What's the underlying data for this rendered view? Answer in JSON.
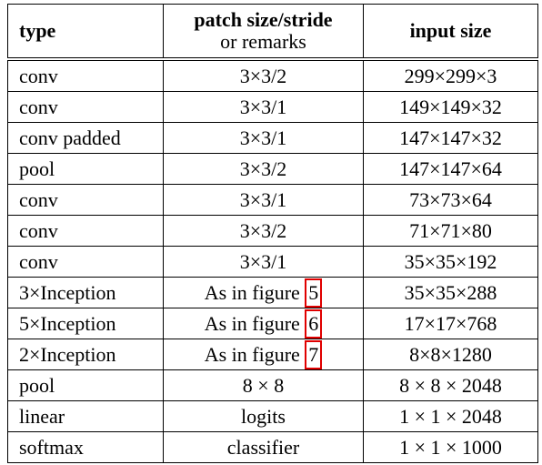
{
  "table": {
    "header": {
      "type": "type",
      "patch": "patch size/stride",
      "patch_sub": "or remarks",
      "input": "input size"
    },
    "rows": [
      [
        "conv",
        "3×3/2",
        "299×299×3"
      ],
      [
        "conv",
        "3×3/1",
        "149×149×32"
      ],
      [
        "conv padded",
        "3×3/1",
        "147×147×32"
      ],
      [
        "pool",
        "3×3/2",
        "147×147×64"
      ],
      [
        "conv",
        "3×3/1",
        "73×73×64"
      ],
      [
        "conv",
        "3×3/2",
        "71×71×80"
      ],
      [
        "conv",
        "3×3/1",
        "35×35×192"
      ],
      [
        "3×Inception",
        {
          "text": "As in figure",
          "ref": "5"
        },
        "35×35×288"
      ],
      [
        "5×Inception",
        {
          "text": "As in figure",
          "ref": "6"
        },
        "17×17×768"
      ],
      [
        "2×Inception",
        {
          "text": "As in figure",
          "ref": "7"
        },
        "8×8×1280"
      ],
      [
        "pool",
        "8 × 8",
        "8 × 8 × 2048"
      ],
      [
        "linear",
        "logits",
        "1 × 1 × 2048"
      ],
      [
        "softmax",
        "classifier",
        "1 × 1 × 1000"
      ]
    ]
  }
}
